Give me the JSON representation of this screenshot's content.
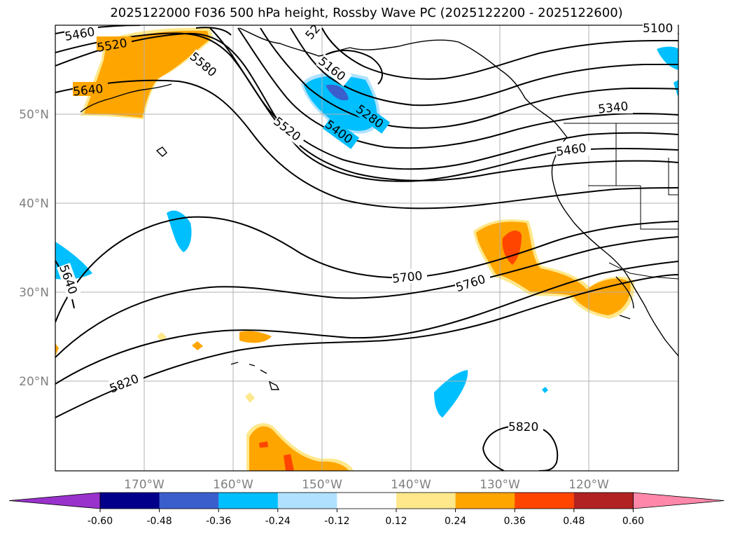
{
  "title": "2025122000 F036 500 hPa height, Rossby Wave PC (2025122200 - 2025122600)",
  "lon_labels": [
    "170°W",
    "160°W",
    "150°W",
    "140°W",
    "130°W",
    "120°W"
  ],
  "lat_labels": [
    "50°N",
    "40°N",
    "30°N",
    "20°N"
  ],
  "contour_labels": [
    {
      "text": "5460"
    },
    {
      "text": "5520"
    },
    {
      "text": "5640"
    },
    {
      "text": "5580"
    },
    {
      "text": "5520"
    },
    {
      "text": "5400"
    },
    {
      "text": "5280"
    },
    {
      "text": "5160"
    },
    {
      "text": "5340"
    },
    {
      "text": "5460"
    },
    {
      "text": "5100"
    },
    {
      "text": "5700"
    },
    {
      "text": "5760"
    },
    {
      "text": "5640"
    },
    {
      "text": "5820"
    },
    {
      "text": "5820"
    },
    {
      "text": "52"
    }
  ],
  "colorbar": {
    "ticks": [
      "-0.60",
      "-0.48",
      "-0.36",
      "-0.24",
      "-0.12",
      "0.12",
      "0.24",
      "0.36",
      "0.48",
      "0.60"
    ],
    "colors": [
      "#9932cc",
      "#00008b",
      "#3a5fcd",
      "#00bfff",
      "#b0e2ff",
      "#ffffff",
      "#ffe88c",
      "#ffa500",
      "#ff4500",
      "#b22222",
      "#ff88aa"
    ]
  }
}
